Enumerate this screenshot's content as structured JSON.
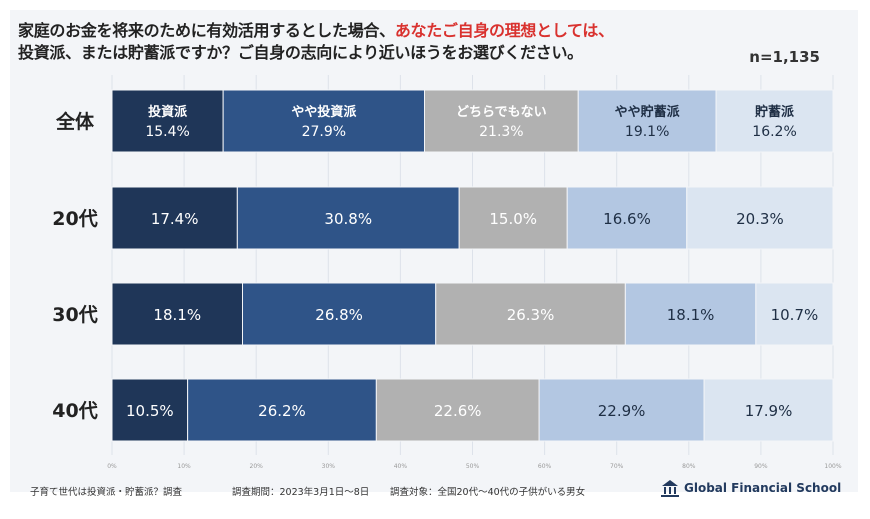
{
  "title": {
    "line1_plain": "家庭のお金を将来のために有効活用するとした場合、",
    "line1_highlight": "あなたご自身の理想としては、",
    "line2": "投資派、または貯蓄派ですか？ご自身の志向により近いほうをお選びください。",
    "sample_size": "n=1,135",
    "highlight_color": "#d9322f"
  },
  "chart_data": {
    "type": "bar",
    "orientation": "horizontal-stacked-100",
    "categories": [
      "全体",
      "20代",
      "30代",
      "40代"
    ],
    "series": [
      {
        "name": "投資派",
        "values": [
          15.4,
          17.4,
          18.1,
          10.5
        ],
        "color": "#1f3658",
        "text_color": "#ffffff"
      },
      {
        "name": "やや投資派",
        "values": [
          27.9,
          30.8,
          26.8,
          26.2
        ],
        "color": "#2f5488",
        "text_color": "#ffffff"
      },
      {
        "name": "どちらでもない",
        "values": [
          21.3,
          15.0,
          26.3,
          22.6
        ],
        "color": "#b1b1b1",
        "text_color": "#ffffff"
      },
      {
        "name": "やや貯蓄派",
        "values": [
          19.1,
          16.6,
          18.1,
          22.9
        ],
        "color": "#b3c7e2",
        "text_color": "#1f2f45"
      },
      {
        "name": "貯蓄派",
        "values": [
          16.2,
          20.3,
          10.7,
          17.9
        ],
        "color": "#dbe5f1",
        "text_color": "#1f2f45"
      }
    ],
    "data_labels": [
      [
        "15.4%",
        "27.9%",
        "21.3%",
        "19.1%",
        "16.2%"
      ],
      [
        "17.4%",
        "30.8%",
        "15.0%",
        "16.6%",
        "20.3%"
      ],
      [
        "18.1%",
        "26.8%",
        "26.3%",
        "18.1%",
        "10.7%"
      ],
      [
        "10.5%",
        "26.2%",
        "22.6%",
        "22.9%",
        "17.9%"
      ]
    ],
    "series_names_shown_in_first_row": true,
    "xlim": [
      0,
      100
    ],
    "x_ticks": [
      "0%",
      "10%",
      "20%",
      "30%",
      "40%",
      "50%",
      "60%",
      "70%",
      "80%",
      "90%",
      "100%"
    ],
    "grid": true
  },
  "footer": {
    "survey_name": "子育て世代は投資派・貯蓄派？調査",
    "survey_period": "調査期間：2023年3月1日～8日",
    "survey_target": "調査対象：全国20代～40代の子供がいる男女",
    "brand": "Global Financial School"
  }
}
